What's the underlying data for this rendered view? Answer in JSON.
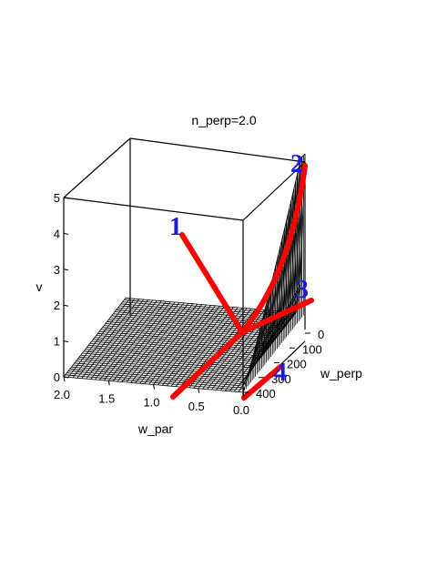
{
  "chart_data": {
    "type": "surface3d",
    "title": "n_perp=2.0",
    "axes": {
      "v": {
        "label": "v",
        "range": [
          0,
          5
        ],
        "ticks": [
          "0",
          "1",
          "2",
          "3",
          "4",
          "5"
        ]
      },
      "w_par": {
        "label": "w_par",
        "range": [
          0.0,
          2.0
        ],
        "ticks": [
          "2.0",
          "1.5",
          "1.0",
          "0.5",
          "0.0"
        ]
      },
      "w_perp": {
        "label": "w_perp",
        "range": [
          0,
          400
        ],
        "ticks": [
          "0",
          "100",
          "200",
          "300",
          "400"
        ]
      }
    },
    "curve_color": "#ff0000",
    "label_color": "#1a1ae6",
    "curves": [
      {
        "label": "1"
      },
      {
        "label": "2"
      },
      {
        "label": "3"
      },
      {
        "label": "4"
      }
    ]
  }
}
